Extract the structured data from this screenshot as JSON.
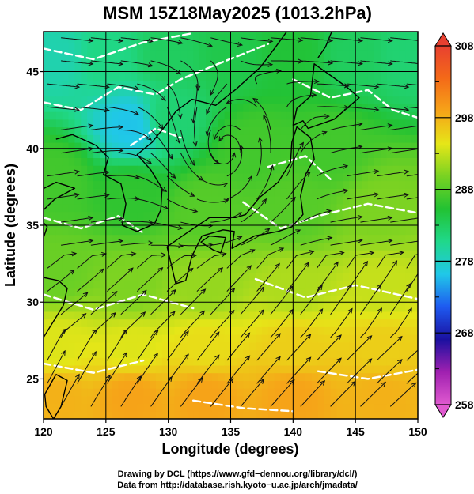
{
  "chart_data": {
    "type": "heatmap",
    "title": "MSM 15Z18May2025 (1013.2hPa)",
    "xlabel": "Longitude (degrees)",
    "ylabel": "Latitude  (degrees)",
    "xlim": [
      120,
      150
    ],
    "ylim": [
      22.4,
      47.6
    ],
    "x_ticks": [
      120,
      125,
      130,
      135,
      140,
      145,
      150
    ],
    "y_ticks": [
      25,
      30,
      35,
      40,
      45
    ],
    "x_tick_labels": [
      "120",
      "125",
      "130",
      "135",
      "140",
      "145",
      "150"
    ],
    "y_tick_labels": [
      "25",
      "30",
      "35",
      "40",
      "45"
    ],
    "grid": true,
    "colorbar": {
      "min": 258,
      "max": 308,
      "tick_values": [
        258,
        268,
        278,
        288,
        298,
        308
      ],
      "tick_labels": [
        "258",
        "268",
        "278",
        "288",
        "298",
        "308"
      ],
      "colors": [
        "#e05ad0",
        "#a020b0",
        "#1a10a0",
        "#1e5af0",
        "#20c8e8",
        "#20d88a",
        "#22c233",
        "#78d222",
        "#e6e618",
        "#f6a418",
        "#f46a18",
        "#e84030"
      ]
    },
    "field_points": [
      {
        "lon": 121,
        "lat": 46,
        "value": 279
      },
      {
        "lon": 125,
        "lat": 46,
        "value": 281
      },
      {
        "lon": 130,
        "lat": 46,
        "value": 283
      },
      {
        "lon": 135,
        "lat": 46,
        "value": 284
      },
      {
        "lon": 140,
        "lat": 46,
        "value": 285
      },
      {
        "lon": 145,
        "lat": 46,
        "value": 283
      },
      {
        "lon": 149,
        "lat": 46,
        "value": 282
      },
      {
        "lon": 127,
        "lat": 41.5,
        "value": 276
      },
      {
        "lon": 130,
        "lat": 42,
        "value": 282
      },
      {
        "lon": 137,
        "lat": 40,
        "value": 287
      },
      {
        "lon": 143,
        "lat": 40,
        "value": 287
      },
      {
        "lon": 121,
        "lat": 38,
        "value": 287
      },
      {
        "lon": 127,
        "lat": 37,
        "value": 286
      },
      {
        "lon": 133,
        "lat": 36,
        "value": 288
      },
      {
        "lon": 140,
        "lat": 36,
        "value": 288
      },
      {
        "lon": 147,
        "lat": 36,
        "value": 290
      },
      {
        "lon": 121,
        "lat": 32,
        "value": 289
      },
      {
        "lon": 127,
        "lat": 31,
        "value": 290
      },
      {
        "lon": 133,
        "lat": 31,
        "value": 291
      },
      {
        "lon": 140,
        "lat": 31,
        "value": 292
      },
      {
        "lon": 147,
        "lat": 31,
        "value": 293
      },
      {
        "lon": 121,
        "lat": 27,
        "value": 294
      },
      {
        "lon": 127,
        "lat": 27,
        "value": 294
      },
      {
        "lon": 133,
        "lat": 27,
        "value": 295
      },
      {
        "lon": 140,
        "lat": 27,
        "value": 296
      },
      {
        "lon": 147,
        "lat": 27,
        "value": 296
      },
      {
        "lon": 121,
        "lat": 24,
        "value": 298
      },
      {
        "lon": 127,
        "lat": 24,
        "value": 299
      },
      {
        "lon": 133,
        "lat": 24,
        "value": 299
      },
      {
        "lon": 140,
        "lat": 24,
        "value": 299
      },
      {
        "lon": 147,
        "lat": 24,
        "value": 298
      }
    ],
    "low_center": {
      "lon": 134.5,
      "lat": 39.2
    }
  },
  "credits": {
    "line1": "Drawing by DCL (https://www.gfd−dennou.org/library/dcl/)",
    "line2": "Data from http://database.rish.kyoto−u.ac.jp/arch/jmadata/"
  }
}
